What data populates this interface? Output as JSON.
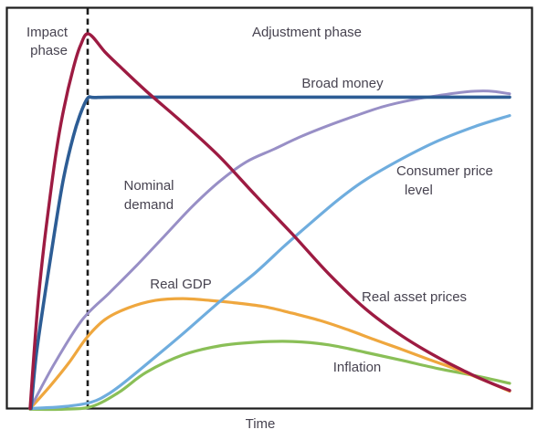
{
  "labels": {
    "impact_phase": {
      "line1": "Impact",
      "line2": "phase"
    },
    "adjustment_phase": "Adjustment phase",
    "broad_money": "Broad money",
    "nominal_demand": {
      "line1": "Nominal",
      "line2": "demand"
    },
    "consumer_price_level": {
      "line1": "Consumer price",
      "line2": "level"
    },
    "real_gdp": "Real GDP",
    "real_asset_prices": "Real asset prices",
    "inflation": "Inflation",
    "time_axis": "Time"
  },
  "colors": {
    "broad_money": "#2d5d95",
    "nominal_demand": "#988fc6",
    "consumer_price_level": "#6fadde",
    "real_gdp": "#efa73e",
    "inflation": "#8abf57",
    "real_asset_prices": "#9d1b42",
    "border": "#1c1c1c",
    "divider": "#1c1c1c",
    "text": "#474350"
  },
  "chart_data": {
    "type": "line",
    "title": "",
    "xlabel": "Time",
    "ylabel": "",
    "x_range": [
      0,
      100
    ],
    "y_range": [
      0,
      100
    ],
    "grid": false,
    "legend": "inline annotations next to each curve",
    "axes_note": "qualitative sketch chart: no numeric ticks; closed box frame; dashed vertical divider separates Impact phase from Adjustment phase",
    "phase_divider_x": 12,
    "phases": [
      {
        "name": "Impact phase",
        "x_start": 0,
        "x_end": 12
      },
      {
        "name": "Adjustment phase",
        "x_start": 12,
        "x_end": 100
      }
    ],
    "series": [
      {
        "name": "Inflation",
        "color": "#8abf57",
        "points": [
          [
            0,
            -0.2
          ],
          [
            7,
            -0.2
          ],
          [
            12.8,
            0.5
          ],
          [
            18.5,
            4.3
          ],
          [
            24.2,
            9.6
          ],
          [
            31.8,
            14.2
          ],
          [
            39.4,
            16.6
          ],
          [
            47,
            17.6
          ],
          [
            54.7,
            17.8
          ],
          [
            62.3,
            16.9
          ],
          [
            69.9,
            14.9
          ],
          [
            77.5,
            12.8
          ],
          [
            85.1,
            10.6
          ],
          [
            92.8,
            8.7
          ],
          [
            100,
            6.7
          ]
        ]
      },
      {
        "name": "Real GDP",
        "color": "#efa73e",
        "points": [
          [
            0,
            0
          ],
          [
            4.2,
            6
          ],
          [
            8,
            12
          ],
          [
            11.8,
            18.8
          ],
          [
            15.6,
            23.6
          ],
          [
            20.4,
            26.7
          ],
          [
            26.1,
            28.7
          ],
          [
            31.8,
            29.2
          ],
          [
            37.5,
            28.7
          ],
          [
            43.2,
            28
          ],
          [
            49,
            27
          ],
          [
            54.7,
            25.3
          ],
          [
            60.4,
            23.4
          ],
          [
            66.1,
            21
          ],
          [
            71.8,
            18.3
          ],
          [
            77.5,
            15.7
          ],
          [
            83.2,
            13
          ],
          [
            89,
            10.4
          ],
          [
            94.7,
            7.5
          ],
          [
            100,
            4.6
          ]
        ]
      },
      {
        "name": "Consumer price level",
        "color": "#6fadde",
        "points": [
          [
            0,
            0
          ],
          [
            7,
            0.5
          ],
          [
            12.8,
            1.7
          ],
          [
            16.6,
            4.1
          ],
          [
            20.4,
            7.7
          ],
          [
            26.1,
            13.7
          ],
          [
            31.8,
            19.8
          ],
          [
            40,
            28.9
          ],
          [
            47,
            36.1
          ],
          [
            52.8,
            42.9
          ],
          [
            57.1,
            47.7
          ],
          [
            64.2,
            55.4
          ],
          [
            69.9,
            60.7
          ],
          [
            77.5,
            66.3
          ],
          [
            85.1,
            71.1
          ],
          [
            92.8,
            74.9
          ],
          [
            100,
            77.8
          ]
        ]
      },
      {
        "name": "Nominal demand",
        "color": "#988fc6",
        "points": [
          [
            0,
            0
          ],
          [
            5.1,
            12
          ],
          [
            10.9,
            23.6
          ],
          [
            16.6,
            30.8
          ],
          [
            22.3,
            38.1
          ],
          [
            28,
            45.8
          ],
          [
            33.7,
            53.5
          ],
          [
            39.4,
            60.2
          ],
          [
            45.1,
            65.5
          ],
          [
            50.9,
            68.9
          ],
          [
            56.6,
            72.3
          ],
          [
            62.3,
            75.2
          ],
          [
            68,
            77.8
          ],
          [
            73.7,
            80.2
          ],
          [
            79.4,
            81.9
          ],
          [
            85.1,
            83.1
          ],
          [
            90.9,
            84.1
          ],
          [
            95.6,
            84.3
          ],
          [
            100,
            83.6
          ]
        ]
      },
      {
        "name": "Broad money",
        "color": "#2d5d95",
        "points": [
          [
            0.2,
            0
          ],
          [
            1.3,
            14.5
          ],
          [
            3.2,
            31.3
          ],
          [
            5.1,
            47
          ],
          [
            7,
            61.4
          ],
          [
            9,
            72.3
          ],
          [
            10.5,
            78.3
          ],
          [
            12,
            82.4
          ],
          [
            13.5,
            82.6
          ],
          [
            20,
            82.7
          ],
          [
            50,
            82.7
          ],
          [
            100,
            82.7
          ]
        ]
      },
      {
        "name": "Real asset prices",
        "color": "#9d1b42",
        "points": [
          [
            0,
            0
          ],
          [
            0.8,
            14.5
          ],
          [
            1.7,
            28.9
          ],
          [
            2.9,
            43.4
          ],
          [
            4.2,
            56.6
          ],
          [
            5.5,
            68.7
          ],
          [
            7,
            79.5
          ],
          [
            9,
            90.4
          ],
          [
            10.5,
            96.4
          ],
          [
            12.2,
            99.5
          ],
          [
            15.6,
            94.7
          ],
          [
            18.5,
            91.1
          ],
          [
            24.2,
            84.3
          ],
          [
            31.8,
            75.9
          ],
          [
            39.4,
            67
          ],
          [
            47,
            56.6
          ],
          [
            54.7,
            46.3
          ],
          [
            62.3,
            35.7
          ],
          [
            69.9,
            26.5
          ],
          [
            77.5,
            19.3
          ],
          [
            85.1,
            13.5
          ],
          [
            91.8,
            9.2
          ],
          [
            96.6,
            6.5
          ],
          [
            100,
            4.8
          ]
        ]
      }
    ]
  }
}
